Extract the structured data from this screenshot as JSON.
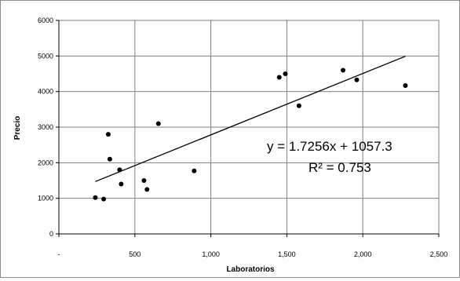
{
  "chart_data": {
    "type": "scatter",
    "xlabel": "Laboratorios",
    "ylabel": "Precio",
    "xlim": [
      0,
      2500
    ],
    "ylim": [
      0,
      6000
    ],
    "x_ticks": [
      0,
      500,
      1000,
      1500,
      2000,
      2500
    ],
    "x_tick_labels": [
      "-",
      "500",
      "1,000",
      "1,500",
      "2,000",
      "2,500"
    ],
    "y_ticks": [
      0,
      1000,
      2000,
      3000,
      4000,
      5000,
      6000
    ],
    "y_tick_labels": [
      "0",
      "1000",
      "2000",
      "3000",
      "4000",
      "5000",
      "6000"
    ],
    "grid": true,
    "legend": "none",
    "marker_color": "#000000",
    "points": [
      {
        "x": 240,
        "y": 1020
      },
      {
        "x": 295,
        "y": 980
      },
      {
        "x": 325,
        "y": 2800
      },
      {
        "x": 335,
        "y": 2100
      },
      {
        "x": 400,
        "y": 1800
      },
      {
        "x": 410,
        "y": 1400
      },
      {
        "x": 560,
        "y": 1500
      },
      {
        "x": 580,
        "y": 1250
      },
      {
        "x": 655,
        "y": 3100
      },
      {
        "x": 890,
        "y": 1770
      },
      {
        "x": 1450,
        "y": 4400
      },
      {
        "x": 1490,
        "y": 4500
      },
      {
        "x": 1580,
        "y": 3600
      },
      {
        "x": 1870,
        "y": 4600
      },
      {
        "x": 1960,
        "y": 4330
      },
      {
        "x": 2280,
        "y": 4170
      }
    ],
    "trendline": {
      "slope": 1.7256,
      "intercept": 1057.3,
      "x_range": [
        240,
        2280
      ],
      "equation_label": "y = 1.7256x + 1057.3",
      "r2_label": "R² = 0.753"
    }
  }
}
